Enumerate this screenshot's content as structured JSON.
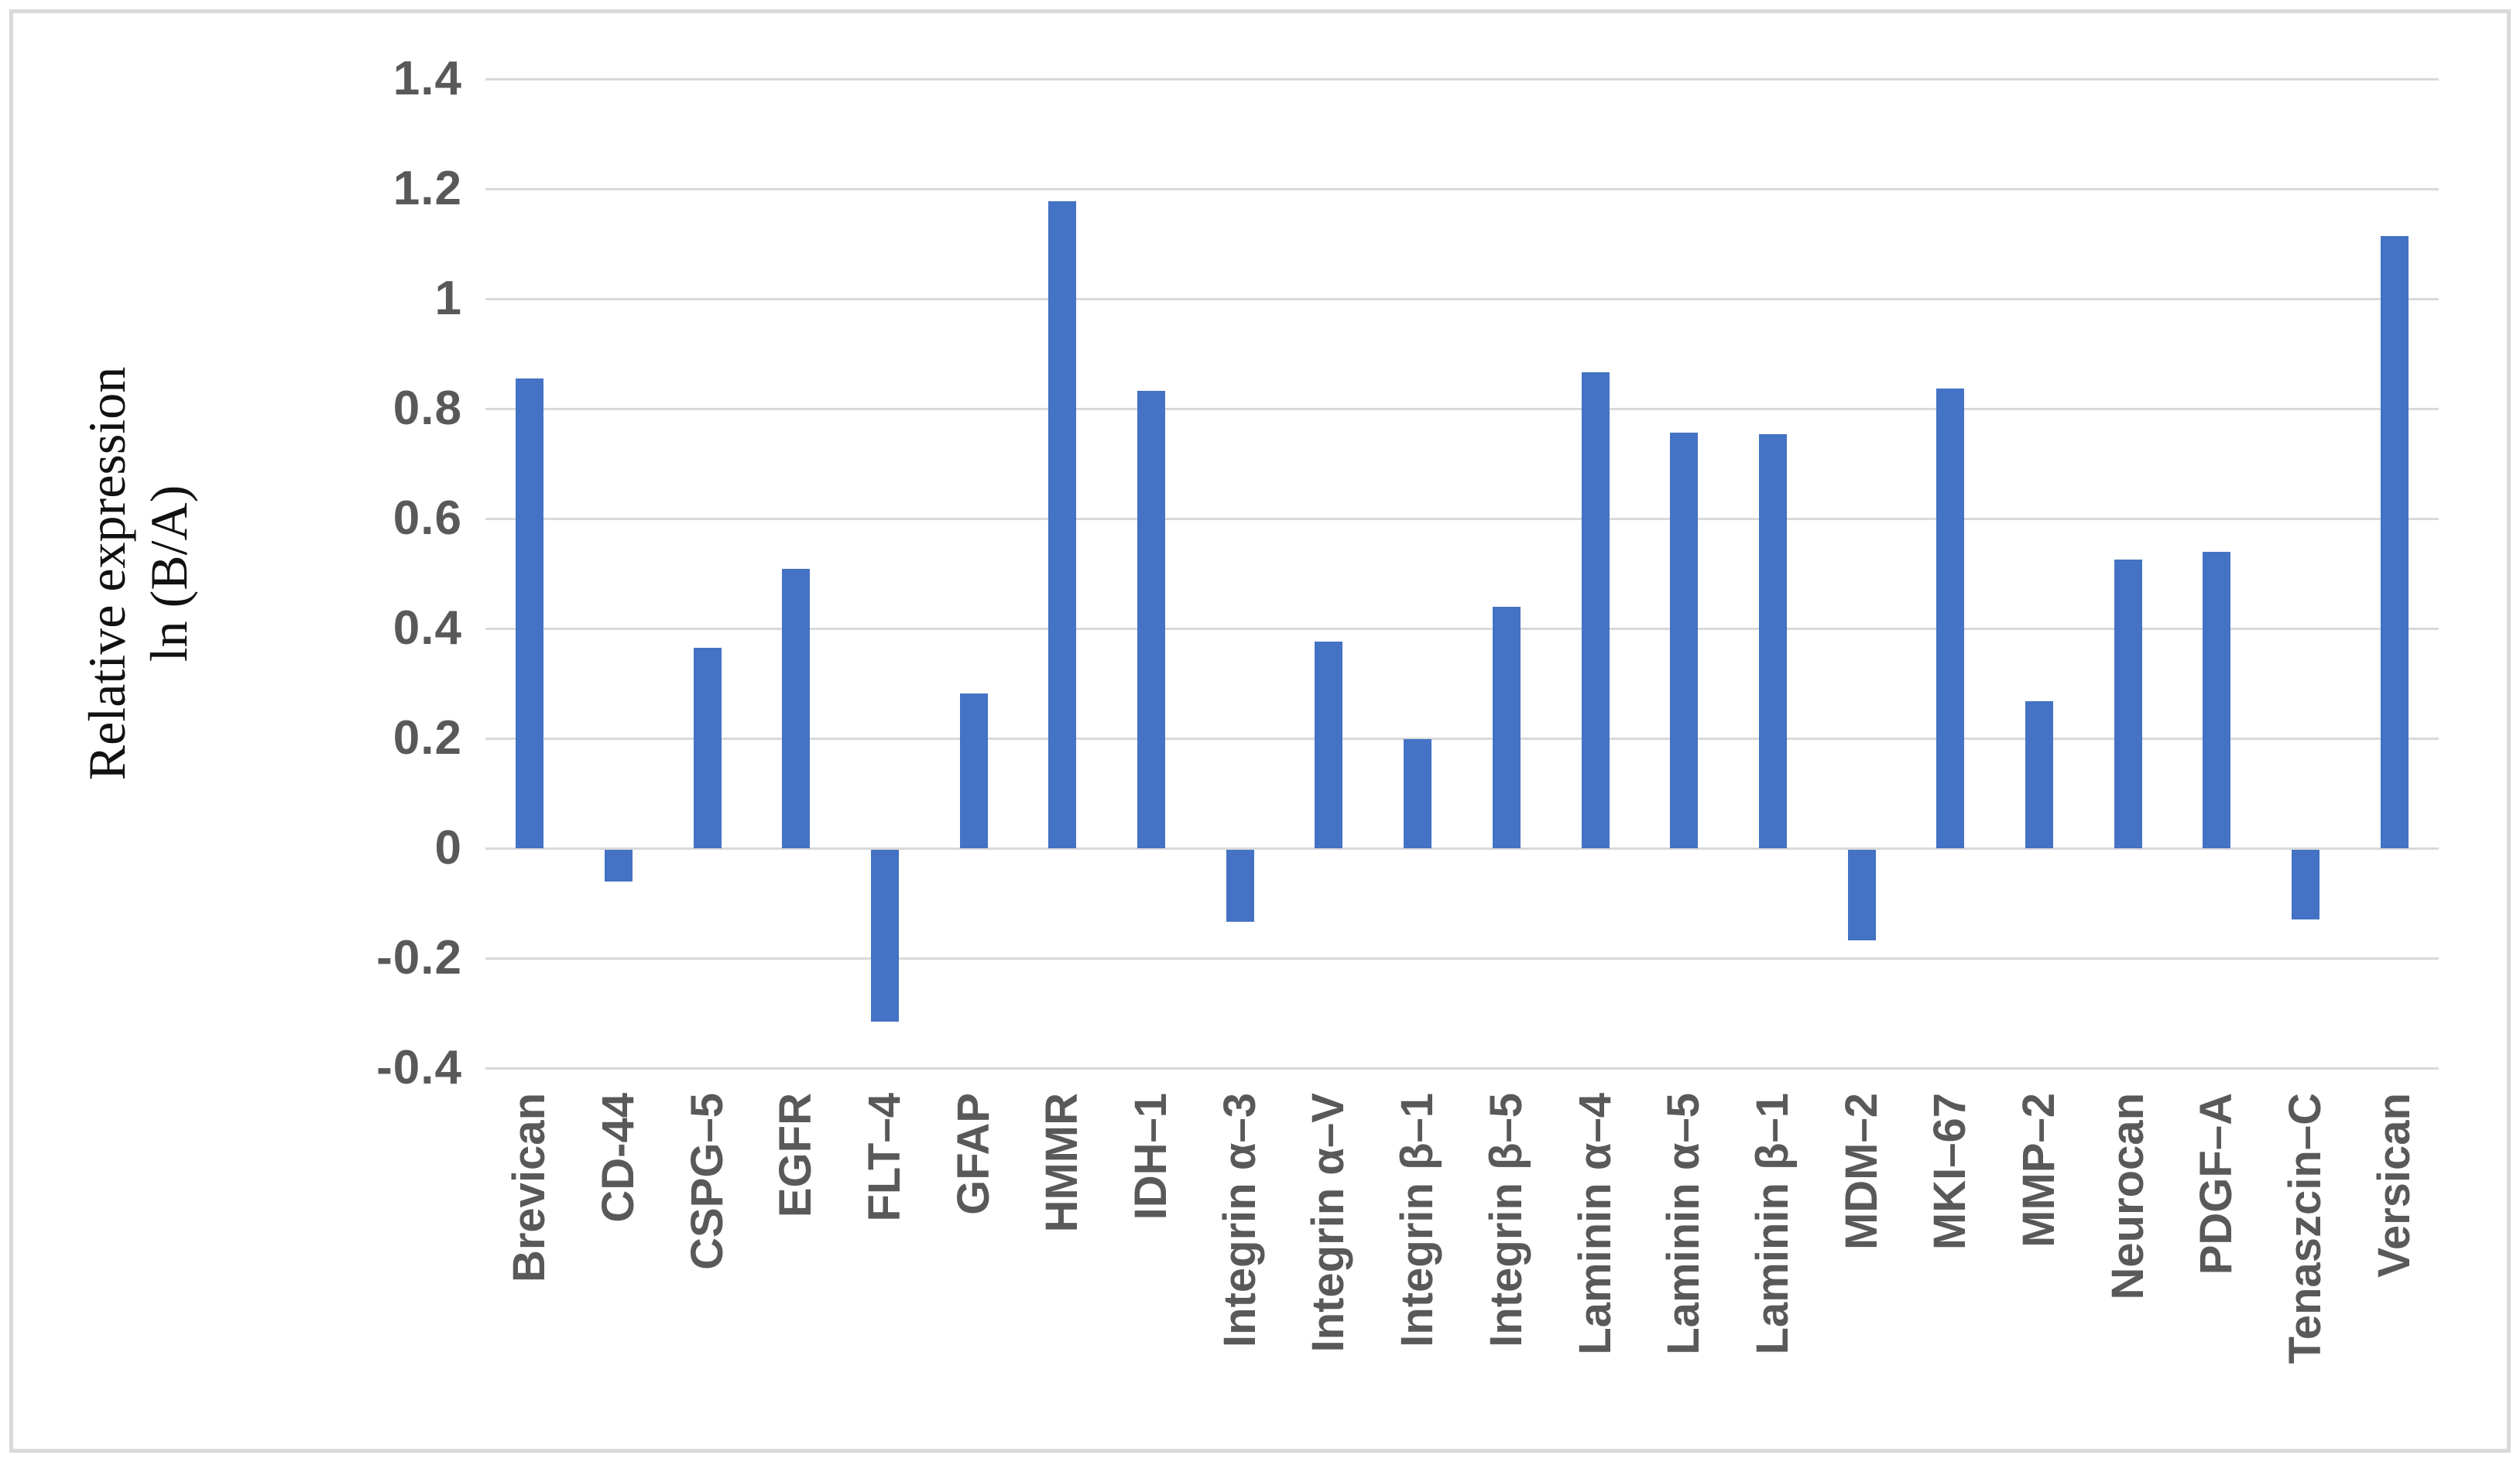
{
  "chart_data": {
    "type": "bar",
    "title": "",
    "ylabel_line1": "Relative expression",
    "ylabel_line2": "ln (B/A)",
    "categories": [
      "Brevican",
      "CD-44",
      "CSPG–5",
      "EGFR",
      "FLT–4",
      "GFAP",
      "HMMR",
      "IDH–1",
      "Integrin α–3",
      "Integrin α–V",
      "Integrin β–1",
      "Integrin β–5",
      "Laminin α–4",
      "Laminin α–5",
      "Laminin β–1",
      "MDM–2",
      "MKI–67",
      "MMP–2",
      "Neurocan",
      "PDGF–A",
      "Tenaszcin–C",
      "Versican"
    ],
    "values": [
      0.855,
      -0.058,
      0.365,
      0.508,
      -0.314,
      0.281,
      1.178,
      0.833,
      -0.131,
      0.376,
      0.198,
      0.44,
      0.866,
      0.757,
      0.754,
      -0.166,
      0.836,
      0.268,
      0.525,
      0.54,
      -0.127,
      1.114
    ],
    "yticks": [
      1.4,
      1.2,
      1.0,
      0.8,
      0.6,
      0.4,
      0.2,
      0,
      -0.2,
      -0.4
    ],
    "ytick_labels": [
      "1.4",
      "1.2",
      "1",
      "0.8",
      "0.6",
      "0.4",
      "0.2",
      "0",
      "-0.2",
      "-0.4"
    ],
    "ylim": [
      -0.4,
      1.4
    ],
    "grid": true,
    "legend_position": "none",
    "bar_color": "#4472C4",
    "gridline_color": "#D9D9D9",
    "axis_text_color": "#595959",
    "chart_border_color": "#D9D9D9"
  }
}
